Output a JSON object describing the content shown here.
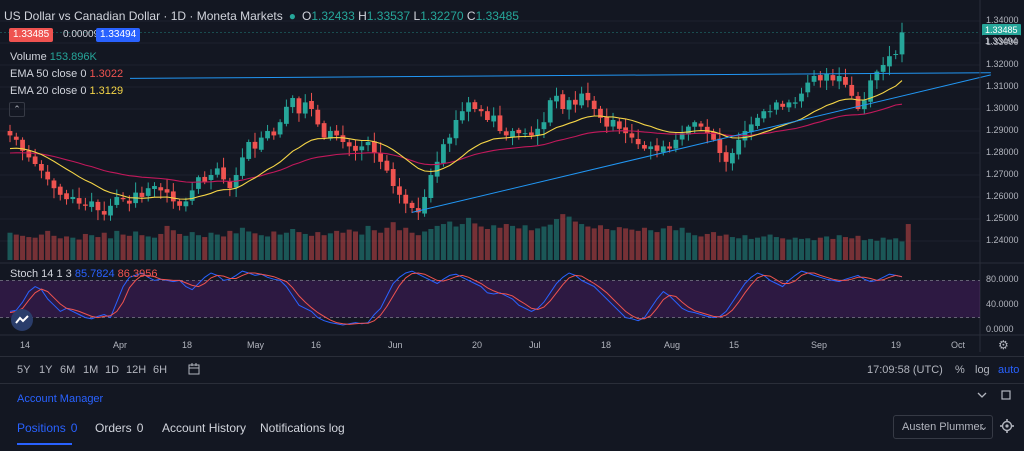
{
  "header": {
    "title": "US Dollar vs Canadian Dollar · 1D · Moneta Markets",
    "ohlc": [
      {
        "k": "O",
        "v": "1.32433"
      },
      {
        "k": "H",
        "v": "1.33537"
      },
      {
        "k": "L",
        "v": "1.32270"
      },
      {
        "k": "C",
        "v": "1.33485"
      }
    ],
    "bid": "1.33485",
    "spread": "0.00009",
    "ask": "1.33494"
  },
  "indicators": {
    "volume_label": "Volume",
    "volume_value": "153.896K",
    "ema50_label": "EMA 50 close 0",
    "ema50_value": "1.3022",
    "ema20_label": "EMA 20 close 0",
    "ema20_value": "1.3129",
    "stoch_label": "Stoch 14 1 3",
    "stoch_k": "85.7824",
    "stoch_d": "86.3956"
  },
  "colors": {
    "up": "#26a69a",
    "down": "#ef5350",
    "ema20": "#f5d547",
    "ema50": "#c2185b",
    "trendline": "#2196f3",
    "stoch_k": "#2962ff",
    "stoch_d": "#ef5350",
    "stoch_band": "#7b1fa2"
  },
  "price_axis": {
    "ticks": [
      "1.34000",
      "1.33000",
      "1.32000",
      "1.31000",
      "1.30000",
      "1.29000",
      "1.28000",
      "1.27000",
      "1.26000",
      "1.25000",
      "1.24000"
    ],
    "last_price": "1.33485",
    "ask_price": "1.33494"
  },
  "stoch_axis": {
    "ticks": [
      "80.0000",
      "40.0000",
      "0.0000"
    ]
  },
  "time_axis": {
    "ticks": [
      "14",
      "Apr",
      "18",
      "May",
      "16",
      "Jun",
      "20",
      "Jul",
      "18",
      "Aug",
      "15",
      "Sep",
      "19",
      "Oct"
    ]
  },
  "toolbar": {
    "ranges": [
      "5Y",
      "1Y",
      "6M",
      "1M",
      "1D",
      "12H",
      "6H"
    ],
    "time": "17:09:58 (UTC)",
    "percent": "%",
    "log": "log",
    "auto": "auto"
  },
  "panel": {
    "title": "Account Manager",
    "tabs": [
      {
        "label": "Positions",
        "count": "0"
      },
      {
        "label": "Orders",
        "count": "0"
      },
      {
        "label": "Account History",
        "count": ""
      },
      {
        "label": "Notifications log",
        "count": ""
      }
    ],
    "user": "Austen Plummer"
  },
  "chart_data": {
    "type": "candlestick",
    "y_range": [
      1.235,
      1.345
    ],
    "closes": [
      1.288,
      1.286,
      1.281,
      1.278,
      1.275,
      1.272,
      1.268,
      1.264,
      1.261,
      1.259,
      1.26,
      1.257,
      1.256,
      1.258,
      1.254,
      1.252,
      1.256,
      1.26,
      1.259,
      1.257,
      1.262,
      1.26,
      1.264,
      1.265,
      1.263,
      1.262,
      1.258,
      1.256,
      1.258,
      1.263,
      1.269,
      1.267,
      1.27,
      1.273,
      1.268,
      1.264,
      1.27,
      1.278,
      1.285,
      1.282,
      1.287,
      1.29,
      1.288,
      1.294,
      1.301,
      1.305,
      1.298,
      1.303,
      1.3,
      1.293,
      1.287,
      1.29,
      1.288,
      1.285,
      1.283,
      1.281,
      1.283,
      1.285,
      1.28,
      1.276,
      1.272,
      1.265,
      1.261,
      1.257,
      1.255,
      1.253,
      1.26,
      1.27,
      1.276,
      1.284,
      1.287,
      1.295,
      1.299,
      1.303,
      1.3,
      1.299,
      1.295,
      1.297,
      1.29,
      1.288,
      1.29,
      1.289,
      1.289,
      1.288,
      1.291,
      1.294,
      1.304,
      1.306,
      1.3,
      1.304,
      1.302,
      1.307,
      1.304,
      1.3,
      1.296,
      1.292,
      1.295,
      1.291,
      1.289,
      1.287,
      1.284,
      1.282,
      1.283,
      1.281,
      1.283,
      1.282,
      1.286,
      1.289,
      1.292,
      1.294,
      1.292,
      1.289,
      1.286,
      1.28,
      1.276,
      1.28,
      1.286,
      1.29,
      1.293,
      1.296,
      1.299,
      1.299,
      1.303,
      1.301,
      1.303,
      1.303,
      1.307,
      1.312,
      1.315,
      1.313,
      1.316,
      1.313,
      1.315,
      1.311,
      1.306,
      1.3,
      1.304,
      1.313,
      1.317,
      1.32,
      1.324,
      1.325,
      1.3348
    ],
    "ema20": [
      1.282,
      1.2822,
      1.2819,
      1.2813,
      1.2804,
      1.2793,
      1.2778,
      1.2762,
      1.2744,
      1.2727,
      1.271,
      1.2692,
      1.2676,
      1.2663,
      1.2647,
      1.2631,
      1.262,
      1.2613,
      1.2605,
      1.2597,
      1.2596,
      1.2594,
      1.2596,
      1.2599,
      1.2599,
      1.26,
      1.2595,
      1.2591,
      1.259,
      1.2593,
      1.2602,
      1.2608,
      1.2617,
      1.2628,
      1.2633,
      1.2634,
      1.264,
      1.2654,
      1.2672,
      1.2687,
      1.2706,
      1.2725,
      1.274,
      1.2759,
      1.2783,
      1.2808,
      1.2824,
      1.2843,
      1.2858,
      1.2865,
      1.2866,
      1.2869,
      1.287,
      1.2869,
      1.2865,
      1.286,
      1.2857,
      1.2857,
      1.2852,
      1.2843,
      1.2831,
      1.2814,
      1.2794,
      1.2773,
      1.2751,
      1.273,
      1.2718,
      1.2716,
      1.2719,
      1.273,
      1.2743,
      1.2763,
      1.2785,
      1.2809,
      1.2827,
      1.2843,
      1.2853,
      1.2864,
      1.2867,
      1.2869,
      1.2872,
      1.2874,
      1.2875,
      1.2876,
      1.288,
      1.2885,
      1.2901,
      1.2916,
      1.2924,
      1.2935,
      1.2944,
      1.2956,
      1.2964,
      1.2968,
      1.2968,
      1.2964,
      1.2964,
      1.2959,
      1.2955,
      1.2948,
      1.2939,
      1.2928,
      1.2921,
      1.291,
      1.2902,
      1.2895,
      1.2893,
      1.2893,
      1.2896,
      1.29,
      1.2902,
      1.2901,
      1.2897,
      1.2888,
      1.2876,
      1.2869,
      1.2868,
      1.2871,
      1.2876,
      1.2884,
      1.2894,
      1.2903,
      1.2915,
      1.2924,
      1.2935,
      1.2943,
      1.2955,
      1.2971,
      1.2988,
      1.3001,
      1.3016,
      1.3026,
      1.3038,
      1.3044,
      1.3046,
      1.3041,
      1.3041,
      1.305,
      1.3061,
      1.3074,
      1.309,
      1.3104,
      1.3129
    ],
    "ema50": [
      1.28,
      1.2801,
      1.2801,
      1.28,
      1.2798,
      1.2795,
      1.279,
      1.2784,
      1.2777,
      1.2769,
      1.2762,
      1.2754,
      1.2745,
      1.2738,
      1.2729,
      1.272,
      1.2713,
      1.2708,
      1.2702,
      1.2697,
      1.2694,
      1.269,
      1.2688,
      1.2686,
      1.2684,
      1.2681,
      1.2677,
      1.2672,
      1.2668,
      1.2667,
      1.2668,
      1.2668,
      1.2669,
      1.2672,
      1.2672,
      1.2671,
      1.2672,
      1.2677,
      1.2684,
      1.269,
      1.2697,
      1.2706,
      1.2713,
      1.2722,
      1.2733,
      1.2746,
      1.2755,
      1.2766,
      1.2775,
      1.2781,
      1.2785,
      1.2789,
      1.2793,
      1.2795,
      1.2797,
      1.2798,
      1.2799,
      1.2801,
      1.2801,
      1.28,
      1.2797,
      1.2791,
      1.2784,
      1.2775,
      1.2765,
      1.2755,
      1.2749,
      1.2747,
      1.2748,
      1.2752,
      1.2757,
      1.2764,
      1.2774,
      1.2784,
      1.2793,
      1.28,
      1.2806,
      1.2812,
      1.2816,
      1.2819,
      1.2822,
      1.2825,
      1.2828,
      1.283,
      1.2833,
      1.2838,
      1.2846,
      1.2855,
      1.2861,
      1.2868,
      1.2875,
      1.2883,
      1.289,
      1.2894,
      1.2897,
      1.2898,
      1.29,
      1.2901,
      1.2901,
      1.29,
      1.2898,
      1.2895,
      1.2893,
      1.289,
      1.2888,
      1.2886,
      1.2886,
      1.2886,
      1.2887,
      1.2889,
      1.289,
      1.289,
      1.2889,
      1.2886,
      1.2882,
      1.2879,
      1.2878,
      1.2879,
      1.2881,
      1.2884,
      1.2888,
      1.2892,
      1.2898,
      1.2902,
      1.2907,
      1.2911,
      1.2918,
      1.2926,
      1.2935,
      1.2942,
      1.2951,
      1.2958,
      1.2966,
      1.2971,
      1.2973,
      1.2974,
      1.2977,
      1.2983,
      1.2991,
      1.2999,
      1.3008,
      1.3018,
      1.3022
    ],
    "volume": [
      0.44,
      0.41,
      0.39,
      0.37,
      0.36,
      0.41,
      0.47,
      0.39,
      0.35,
      0.38,
      0.36,
      0.33,
      0.42,
      0.4,
      0.37,
      0.44,
      0.35,
      0.47,
      0.41,
      0.39,
      0.46,
      0.4,
      0.38,
      0.36,
      0.42,
      0.55,
      0.48,
      0.42,
      0.39,
      0.45,
      0.4,
      0.37,
      0.44,
      0.41,
      0.38,
      0.47,
      0.43,
      0.52,
      0.46,
      0.43,
      0.4,
      0.38,
      0.46,
      0.41,
      0.44,
      0.5,
      0.45,
      0.42,
      0.39,
      0.45,
      0.4,
      0.43,
      0.47,
      0.44,
      0.49,
      0.46,
      0.41,
      0.55,
      0.48,
      0.44,
      0.52,
      0.61,
      0.48,
      0.52,
      0.44,
      0.4,
      0.46,
      0.5,
      0.55,
      0.58,
      0.62,
      0.54,
      0.58,
      0.68,
      0.59,
      0.54,
      0.5,
      0.56,
      0.52,
      0.58,
      0.55,
      0.51,
      0.56,
      0.48,
      0.51,
      0.54,
      0.57,
      0.66,
      0.74,
      0.7,
      0.62,
      0.58,
      0.54,
      0.51,
      0.56,
      0.5,
      0.48,
      0.53,
      0.51,
      0.49,
      0.47,
      0.52,
      0.48,
      0.45,
      0.51,
      0.55,
      0.48,
      0.52,
      0.44,
      0.4,
      0.38,
      0.42,
      0.45,
      0.39,
      0.41,
      0.37,
      0.35,
      0.4,
      0.34,
      0.36,
      0.38,
      0.41,
      0.37,
      0.35,
      0.33,
      0.36,
      0.34,
      0.35,
      0.32,
      0.36,
      0.38,
      0.34,
      0.4,
      0.37,
      0.35,
      0.39,
      0.32,
      0.34,
      0.31,
      0.36,
      0.33,
      0.35,
      0.3,
      0.58
    ],
    "stoch_k": [
      30,
      32,
      45,
      62,
      70,
      65,
      50,
      40,
      30,
      35,
      30,
      25,
      20,
      18,
      22,
      25,
      20,
      45,
      70,
      85,
      88,
      92,
      85,
      80,
      82,
      80,
      78,
      80,
      70,
      65,
      75,
      85,
      92,
      88,
      80,
      82,
      88,
      95,
      92,
      88,
      90,
      85,
      82,
      80,
      70,
      55,
      40,
      35,
      30,
      20,
      15,
      12,
      10,
      8,
      10,
      12,
      10,
      12,
      25,
      35,
      55,
      75,
      85,
      92,
      95,
      90,
      85,
      80,
      75,
      82,
      88,
      90,
      85,
      80,
      75,
      70,
      60,
      58,
      60,
      55,
      50,
      40,
      35,
      30,
      35,
      45,
      60,
      75,
      85,
      92,
      88,
      80,
      75,
      70,
      60,
      50,
      40,
      30,
      20,
      18,
      15,
      20,
      35,
      50,
      62,
      55,
      45,
      35,
      30,
      28,
      25,
      22,
      20,
      22,
      30,
      45,
      60,
      75,
      85,
      92,
      88,
      80,
      75,
      70,
      80,
      88,
      95,
      92,
      88,
      85,
      82,
      80,
      78,
      82,
      85,
      88,
      82,
      78,
      80,
      85,
      90,
      88,
      86
    ],
    "stoch_d": [
      28,
      30,
      35,
      48,
      60,
      66,
      62,
      52,
      42,
      35,
      33,
      30,
      26,
      22,
      20,
      22,
      23,
      30,
      45,
      68,
      80,
      88,
      88,
      86,
      82,
      81,
      80,
      80,
      76,
      72,
      70,
      75,
      84,
      88,
      87,
      83,
      83,
      88,
      92,
      92,
      90,
      88,
      86,
      82,
      78,
      68,
      55,
      45,
      36,
      28,
      22,
      16,
      12,
      10,
      9,
      10,
      11,
      11,
      15,
      24,
      38,
      55,
      72,
      84,
      91,
      92,
      90,
      85,
      80,
      79,
      82,
      86,
      88,
      85,
      80,
      75,
      68,
      63,
      59,
      58,
      55,
      48,
      42,
      35,
      33,
      37,
      47,
      60,
      73,
      84,
      88,
      87,
      81,
      75,
      68,
      60,
      50,
      40,
      30,
      23,
      18,
      18,
      23,
      35,
      49,
      56,
      54,
      45,
      37,
      31,
      28,
      25,
      22,
      21,
      24,
      32,
      45,
      60,
      73,
      84,
      88,
      87,
      81,
      75,
      75,
      79,
      88,
      92,
      92,
      88,
      85,
      82,
      80,
      80,
      82,
      85,
      85,
      83,
      80,
      81,
      85,
      88,
      86
    ],
    "trendlines": [
      {
        "from_index": 0,
        "from_value": 1.3139,
        "to_index": 145,
        "to_value": 1.3165
      },
      {
        "from_index": 64,
        "from_value": 1.253,
        "to_index": 145,
        "to_value": 1.3155
      }
    ],
    "stoch_band": [
      20,
      80
    ]
  }
}
